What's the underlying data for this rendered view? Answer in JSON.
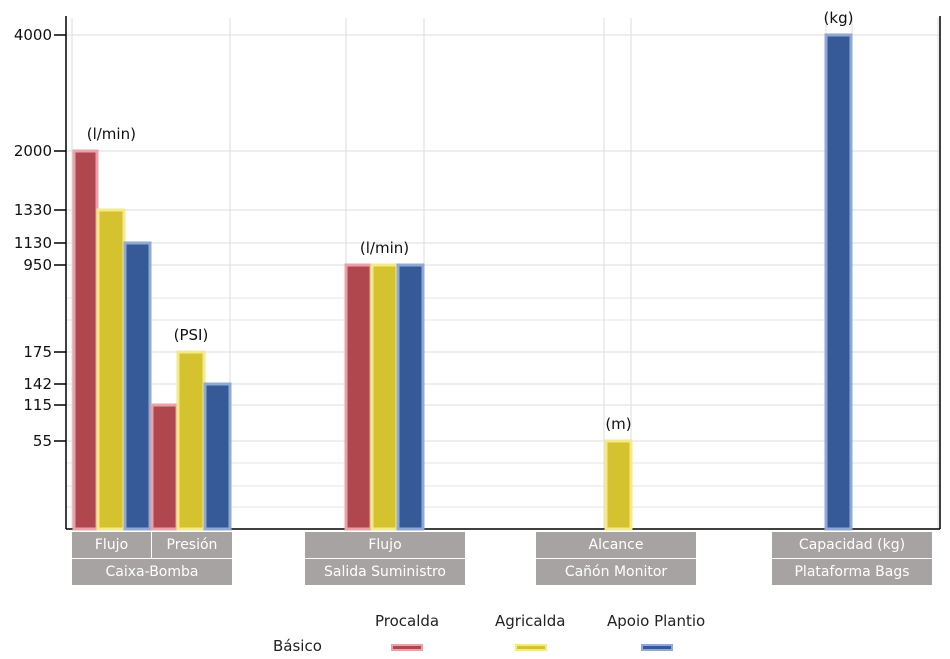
{
  "chart_data": {
    "type": "bar",
    "y_ticks": [
      {
        "label": "4000",
        "value": 4000
      },
      {
        "label": "2000",
        "value": 2000
      },
      {
        "label": "1330",
        "value": 1330
      },
      {
        "label": "1130",
        "value": 1130
      },
      {
        "label": "950",
        "value": 950
      },
      {
        "label": "175",
        "value": 175
      },
      {
        "label": "142",
        "value": 142
      },
      {
        "label": "115",
        "value": 115
      },
      {
        "label": "55",
        "value": 55
      }
    ],
    "series": [
      {
        "name": "Procalda",
        "color": "#b0474f"
      },
      {
        "name": "Agricalda",
        "color": "#d4c22e"
      },
      {
        "name": "Apoio Plantio",
        "color": "#355a97"
      }
    ],
    "groups": [
      {
        "label": "Caixa-Bomba",
        "subgroups": [
          {
            "label": "Flujo",
            "unit": "(l/min)",
            "values": [
              2000,
              1330,
              1130
            ]
          },
          {
            "label": "Presión",
            "unit": "(PSI)",
            "values": [
              115,
              175,
              142
            ]
          }
        ]
      },
      {
        "label": "Salida Suministro",
        "subgroups": [
          {
            "label": "Flujo",
            "unit": "(l/min)",
            "values": [
              950,
              950,
              950
            ]
          }
        ]
      },
      {
        "label": "Cañón Monitor",
        "subgroups": [
          {
            "label": "Alcance",
            "unit": "(m)",
            "values": [
              null,
              55,
              null
            ]
          }
        ]
      },
      {
        "label": "Plataforma Bags",
        "subgroups": [
          {
            "label": "Capacidad (kg)",
            "unit": "(kg)",
            "values": [
              null,
              null,
              4000
            ]
          }
        ]
      }
    ],
    "legend": {
      "title": "Básico",
      "placement": "bottom-center"
    },
    "grid": true
  }
}
